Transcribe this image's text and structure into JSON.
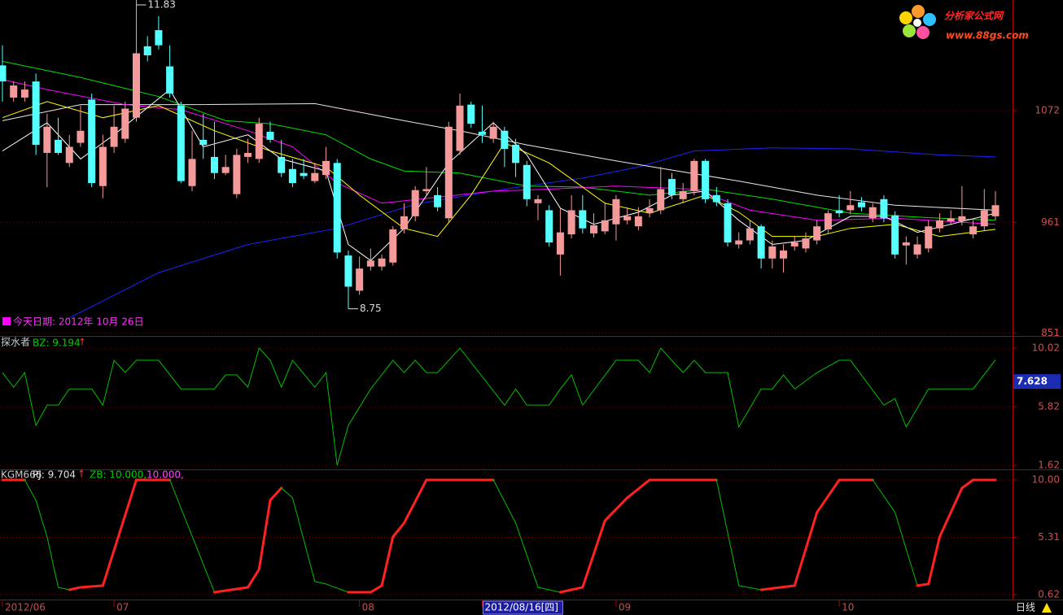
{
  "logo": {
    "title": "分析家公式网",
    "url": "www.88gs.com"
  },
  "footer": {
    "period": "日线"
  },
  "chart_data": [
    {
      "type": "candlestick",
      "annotation": "今天日期: 2012年 10月 26日",
      "high_label": "11.83",
      "low_label": "8.75",
      "up_color": "#f49a9a",
      "down_color": "#54ffff",
      "categories": [
        "2012/06",
        null,
        null,
        null,
        null,
        null,
        null,
        null,
        null,
        null,
        "07",
        null,
        null,
        null,
        null,
        null,
        null,
        null,
        null,
        null,
        null,
        null,
        null,
        null,
        null,
        null,
        null,
        null,
        null,
        null,
        null,
        null,
        "08",
        null,
        null,
        null,
        null,
        null,
        null,
        null,
        null,
        null,
        null,
        "2012/08/16[四]",
        null,
        null,
        null,
        null,
        null,
        null,
        null,
        null,
        null,
        null,
        null,
        "09",
        null,
        null,
        null,
        null,
        null,
        null,
        null,
        null,
        null,
        null,
        null,
        null,
        null,
        null,
        null,
        null,
        null,
        null,
        null,
        "10",
        null,
        null,
        null,
        null,
        null,
        null,
        null,
        null,
        null,
        null,
        null,
        null,
        null,
        null
      ],
      "selected_category": 43,
      "open": [
        1117,
        1085,
        1085,
        1101,
        1030,
        1043,
        1020,
        1040,
        1083,
        997,
        1036,
        1044,
        1065,
        1136,
        1152,
        1116,
        1077,
        997,
        1043,
        1026,
        1010,
        989,
        1026,
        1024,
        1051,
        1026,
        1014,
        1010,
        1002,
        1008,
        1020,
        928,
        893,
        917,
        917,
        921,
        954,
        967,
        992,
        988,
        965,
        1032,
        1078,
        1051,
        1044,
        1052,
        1038,
        1018,
        980,
        973,
        929,
        949,
        973,
        950,
        952,
        959,
        963,
        957,
        970,
        973,
        1004,
        984,
        992,
        1022,
        988,
        980,
        939,
        943,
        957,
        925,
        925,
        937,
        935,
        943,
        954,
        973,
        973,
        981,
        965,
        984,
        968,
        938,
        929,
        935,
        955,
        962,
        962,
        949,
        957,
        967
      ],
      "high": [
        1137,
        1101,
        1101,
        1109,
        1069,
        1065,
        1048,
        1077,
        1089,
        1048,
        1077,
        1081,
        1183,
        1146,
        1166,
        1137,
        1081,
        1052,
        1069,
        1061,
        1028,
        1034,
        1044,
        1065,
        1061,
        1043,
        1024,
        1024,
        1020,
        1036,
        1024,
        933,
        927,
        935,
        929,
        957,
        980,
        997,
        1016,
        996,
        1061,
        1089,
        1081,
        1077,
        1061,
        1056,
        1044,
        1022,
        988,
        978,
        976,
        988,
        988,
        970,
        981,
        988,
        976,
        976,
        984,
        1016,
        1010,
        1000,
        1024,
        1024,
        996,
        984,
        951,
        963,
        959,
        943,
        939,
        947,
        951,
        963,
        973,
        988,
        992,
        986,
        980,
        988,
        972,
        947,
        947,
        963,
        970,
        973,
        997,
        963,
        994,
        992
      ],
      "low": [
        1081,
        1081,
        1081,
        1028,
        996,
        1028,
        1016,
        1036,
        996,
        985,
        1030,
        1040,
        1061,
        1121,
        1133,
        1085,
        1000,
        992,
        1024,
        1004,
        1008,
        985,
        1020,
        1020,
        1040,
        1006,
        996,
        1004,
        1000,
        1004,
        925,
        875,
        889,
        913,
        913,
        918,
        950,
        962,
        988,
        972,
        961,
        1028,
        1055,
        1040,
        1040,
        1016,
        1006,
        977,
        963,
        937,
        908,
        945,
        950,
        946,
        949,
        943,
        959,
        953,
        966,
        969,
        984,
        980,
        988,
        980,
        977,
        937,
        935,
        939,
        915,
        915,
        911,
        933,
        931,
        939,
        950,
        966,
        969,
        972,
        961,
        961,
        925,
        919,
        925,
        931,
        951,
        958,
        958,
        945,
        953,
        963
      ],
      "close": [
        1101,
        1097,
        1093,
        1038,
        1056,
        1030,
        1036,
        1052,
        1000,
        1036,
        1056,
        1074,
        1129,
        1127,
        1137,
        1089,
        1002,
        1024,
        1038,
        1010,
        1016,
        1028,
        1030,
        1059,
        1043,
        1010,
        1000,
        1007,
        1010,
        1022,
        931,
        897,
        915,
        923,
        925,
        954,
        967,
        993,
        994,
        976,
        1056,
        1077,
        1059,
        1048,
        1056,
        1034,
        1020,
        984,
        984,
        941,
        951,
        973,
        955,
        958,
        963,
        984,
        967,
        967,
        975,
        994,
        988,
        992,
        1022,
        984,
        981,
        941,
        943,
        955,
        925,
        937,
        933,
        941,
        945,
        957,
        970,
        970,
        978,
        976,
        976,
        965,
        929,
        941,
        939,
        957,
        963,
        965,
        967,
        957,
        973,
        978
      ],
      "lines": [
        {
          "color": "#2020ff",
          "x": [
            6,
            14,
            22,
            30,
            37,
            45,
            52,
            57,
            62,
            69,
            76,
            84,
            89
          ],
          "values": [
            866,
            911,
            939,
            955,
            979,
            994,
            1005,
            1016,
            1032,
            1035,
            1034,
            1028,
            1026
          ]
        },
        {
          "color": "#e8e8e8",
          "x": [
            0,
            7,
            17,
            28,
            36,
            41,
            47,
            55,
            66,
            73,
            80,
            89
          ],
          "values": [
            1062,
            1078,
            1078,
            1079,
            1062,
            1052,
            1038,
            1022,
            1002,
            988,
            978,
            973
          ]
        },
        {
          "color": "#00e000",
          "x": [
            0,
            7,
            14,
            20,
            24,
            29,
            33,
            36,
            41,
            47,
            52,
            58,
            63,
            69,
            76,
            84,
            89
          ],
          "values": [
            1121,
            1105,
            1086,
            1062,
            1059,
            1048,
            1024,
            1012,
            1010,
            997,
            996,
            988,
            994,
            984,
            970,
            965,
            963
          ]
        },
        {
          "color": "#ff00ff",
          "x": [
            0,
            4,
            11,
            16,
            22,
            26,
            30,
            34,
            39,
            44,
            49,
            55,
            62,
            67,
            73,
            80,
            89
          ],
          "values": [
            1103,
            1093,
            1078,
            1073,
            1052,
            1036,
            1000,
            980,
            986,
            992,
            994,
            997,
            994,
            973,
            963,
            965,
            959
          ]
        },
        {
          "color": "#ffff00",
          "x": [
            0,
            4,
            9,
            14,
            19,
            24,
            29,
            32,
            36,
            39,
            42,
            45,
            49,
            54,
            58,
            63,
            66,
            69,
            73,
            76,
            80,
            84,
            89
          ],
          "values": [
            1065,
            1081,
            1065,
            1077,
            1052,
            1032,
            1016,
            988,
            955,
            947,
            988,
            1040,
            1020,
            980,
            970,
            988,
            971,
            947,
            947,
            955,
            959,
            947,
            954
          ]
        },
        {
          "color": "#ffffff",
          "x": [
            0,
            4,
            7,
            10,
            15,
            18,
            22,
            25,
            29,
            31,
            33,
            36,
            40,
            44,
            47,
            50,
            53,
            57,
            60,
            63,
            66,
            69,
            72,
            76,
            79,
            82,
            85,
            89
          ],
          "values": [
            1032,
            1060,
            1024,
            1048,
            1093,
            1036,
            1048,
            1024,
            1012,
            939,
            923,
            955,
            1020,
            1060,
            1028,
            975,
            959,
            971,
            988,
            992,
            963,
            939,
            943,
            967,
            967,
            951,
            959,
            970
          ]
        }
      ],
      "ylim": [
        848,
        1182
      ],
      "yticks": [
        1072,
        961,
        851
      ],
      "grid": true
    },
    {
      "type": "line",
      "title": "探水者",
      "label": "BZ: 9.194",
      "arrow": "↑",
      "color": "#00c000",
      "current_value": 7.628,
      "x": [
        0,
        1,
        2,
        3,
        4,
        5,
        6,
        8,
        9,
        10,
        11,
        12,
        14,
        16,
        19,
        20,
        21,
        22,
        23,
        24,
        25,
        26,
        28,
        29,
        30,
        31,
        33,
        35,
        36,
        37,
        38,
        39,
        41,
        45,
        46,
        47,
        49,
        50,
        51,
        52,
        55,
        57,
        58,
        59,
        61,
        62,
        63,
        65,
        66,
        68,
        69,
        70,
        71,
        73,
        75,
        76,
        79,
        80,
        81,
        83,
        87,
        89
      ],
      "values": [
        8.27,
        7.22,
        8.27,
        4.48,
        5.94,
        5.94,
        7.1,
        7.1,
        5.94,
        9.15,
        8.27,
        9.15,
        9.15,
        7.1,
        7.1,
        8.1,
        8.1,
        7.22,
        10.02,
        9.15,
        7.22,
        9.15,
        7.22,
        8.27,
        1.62,
        4.48,
        7.1,
        9.15,
        8.27,
        9.15,
        8.27,
        8.27,
        10.02,
        5.94,
        7.1,
        5.94,
        5.94,
        7.1,
        8.1,
        5.94,
        9.15,
        9.15,
        8.27,
        10.02,
        8.27,
        9.15,
        8.27,
        8.27,
        4.37,
        7.1,
        7.1,
        8.1,
        7.1,
        8.27,
        9.15,
        9.15,
        5.94,
        6.41,
        4.37,
        7.1,
        7.1,
        9.19
      ],
      "ylim": [
        1.33,
        10.78
      ],
      "yticks": [
        10.02,
        5.82,
        1.62
      ],
      "grid": true
    },
    {
      "type": "line",
      "title": "KGM666",
      "label": "PJ: 9.704",
      "arrow": "↑",
      "label2": "ZB: 10.000,",
      "label3": "10.000,",
      "up_color": "#ff2020",
      "down_color": "#00c000",
      "x": [
        0,
        2,
        3,
        4,
        5,
        6,
        7,
        9,
        12,
        15,
        19,
        22,
        23,
        24,
        25,
        26,
        28,
        29,
        31,
        33,
        34,
        35,
        36,
        38,
        44,
        46,
        48,
        50,
        52,
        54,
        56,
        58,
        64,
        66,
        68,
        71,
        73,
        75,
        78,
        80,
        82,
        83,
        84,
        86,
        87,
        89
      ],
      "values": [
        10,
        10,
        8.34,
        5.35,
        1.22,
        1.02,
        1.22,
        1.36,
        10,
        10,
        0.82,
        1.22,
        2.69,
        8.34,
        9.34,
        8.54,
        1.69,
        1.49,
        0.82,
        0.82,
        1.36,
        5.35,
        6.48,
        10,
        10,
        6.48,
        1.22,
        0.82,
        1.22,
        6.67,
        8.54,
        10,
        10,
        1.36,
        1.02,
        1.36,
        7.34,
        10,
        10,
        7.34,
        1.36,
        1.49,
        5.35,
        9.34,
        10,
        10
      ],
      "ylim": [
        0.22,
        10.73
      ],
      "yticks": [
        {
          "value": 10,
          "label": "10.00"
        },
        5.31,
        0.62
      ],
      "grid": true
    }
  ]
}
